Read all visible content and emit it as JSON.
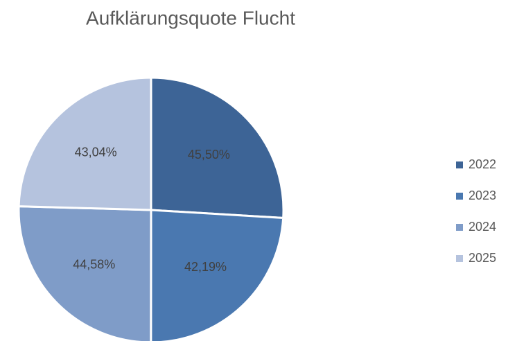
{
  "chart_data": {
    "type": "pie",
    "title": "Aufklärungsquote Flucht",
    "categories": [
      "2022",
      "2023",
      "2024",
      "2025"
    ],
    "values": [
      45.5,
      42.19,
      44.58,
      43.04
    ],
    "value_labels": [
      "45,50%",
      "42,19%",
      "44,58%",
      "43,04%"
    ],
    "colors": [
      "#3d6496",
      "#4a78b0",
      "#7f9cc8",
      "#b5c3de"
    ],
    "legend": "right"
  }
}
